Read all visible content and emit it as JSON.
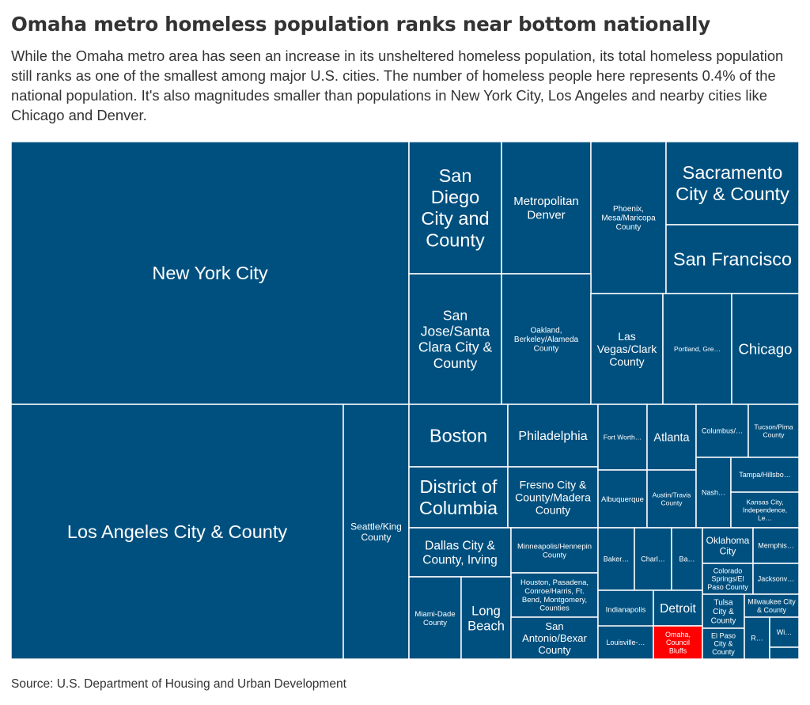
{
  "title": "Omaha metro homeless population ranks near bottom nationally",
  "subtitle": "While the Omaha metro area has seen an increase in its unsheltered homeless population, its total homeless population still ranks as one of the smallest among major U.S. cities. The number of homeless people here represents 0.4% of the national population. It's also magnitudes smaller than populations in New York City, Los Angeles and nearby cities like Chicago and Denver.",
  "source": "Source: U.S. Department of Housing and Urban Development",
  "colors": {
    "tile": "#00507f",
    "highlight": "#ff0000",
    "border": "#ffffff",
    "label": "#ffffff"
  },
  "chart_data": {
    "type": "treemap",
    "highlighted": "Omaha, Council Bluffs",
    "tiles": [
      {
        "label": "New York City"
      },
      {
        "label": "Los Angeles City & County"
      },
      {
        "label": "Seattle/King County"
      },
      {
        "label": "San Diego City and County"
      },
      {
        "label": "Metropolitan Denver"
      },
      {
        "label": "Phoenix, Mesa/Maricopa County"
      },
      {
        "label": "Sacramento City & County"
      },
      {
        "label": "San Francisco"
      },
      {
        "label": "San Jose/Santa Clara City & County"
      },
      {
        "label": "Oakland, Berkeley/Alameda County"
      },
      {
        "label": "Las Vegas/Clark County"
      },
      {
        "label": "Portland, Gre…"
      },
      {
        "label": "Chicago"
      },
      {
        "label": "Boston"
      },
      {
        "label": "Philadelphia"
      },
      {
        "label": "District of Columbia"
      },
      {
        "label": "Fresno City & County/Madera County"
      },
      {
        "label": "Dallas City & County, Irving"
      },
      {
        "label": "Minneapolis/Hennepin County"
      },
      {
        "label": "Houston, Pasadena, Conroe/Harris, Ft. Bend, Montgomery, Counties"
      },
      {
        "label": "Miami-Dade County"
      },
      {
        "label": "Long Beach"
      },
      {
        "label": "San Antonio/Bexar County"
      },
      {
        "label": "Fort Worth…"
      },
      {
        "label": "Atlanta"
      },
      {
        "label": "Columbus/…"
      },
      {
        "label": "Tucson/Pima County"
      },
      {
        "label": "Albuquerque"
      },
      {
        "label": "Austin/Travis County"
      },
      {
        "label": "Nash…"
      },
      {
        "label": "Tampa/Hillsbo…"
      },
      {
        "label": "Kansas City, Independence, Le…"
      },
      {
        "label": "Baker…"
      },
      {
        "label": "Charl…"
      },
      {
        "label": "Ba…"
      },
      {
        "label": "Oklahoma City"
      },
      {
        "label": "Memphis…"
      },
      {
        "label": "Colorado Springs/El Paso County"
      },
      {
        "label": "Jacksonv…"
      },
      {
        "label": "Indianapolis"
      },
      {
        "label": "Detroit"
      },
      {
        "label": "Tulsa City & County"
      },
      {
        "label": "Milwaukee City & County"
      },
      {
        "label": "Louisville-…"
      },
      {
        "label": "Omaha, Council Bluffs"
      },
      {
        "label": "El Paso City & County"
      },
      {
        "label": "R…"
      },
      {
        "label": "Wi…"
      },
      {
        "label": ""
      }
    ]
  }
}
